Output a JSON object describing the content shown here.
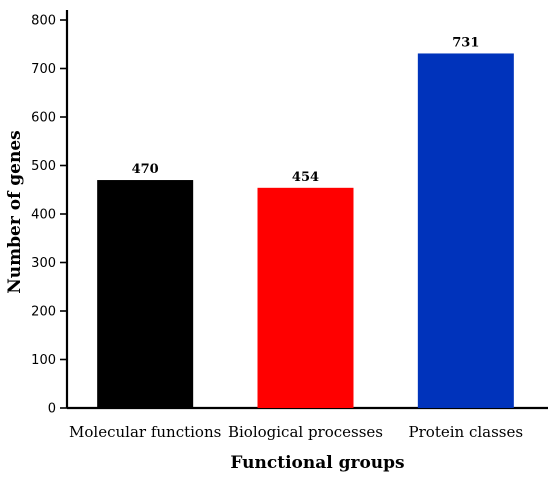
{
  "chart_data": {
    "type": "bar",
    "categories": [
      "Molecular functions",
      "Biological processes",
      "Protein classes"
    ],
    "values": [
      470,
      454,
      731
    ],
    "colors": [
      "#000000",
      "#ff0000",
      "#0033bb"
    ],
    "xlabel": "Functional groups",
    "ylabel": "Number of genes",
    "ylim": [
      0,
      800
    ],
    "yticks": [
      0,
      100,
      200,
      300,
      400,
      500,
      600,
      700,
      800
    ],
    "data_labels": [
      "470",
      "454",
      "731"
    ],
    "grid": false,
    "legend": "none"
  }
}
